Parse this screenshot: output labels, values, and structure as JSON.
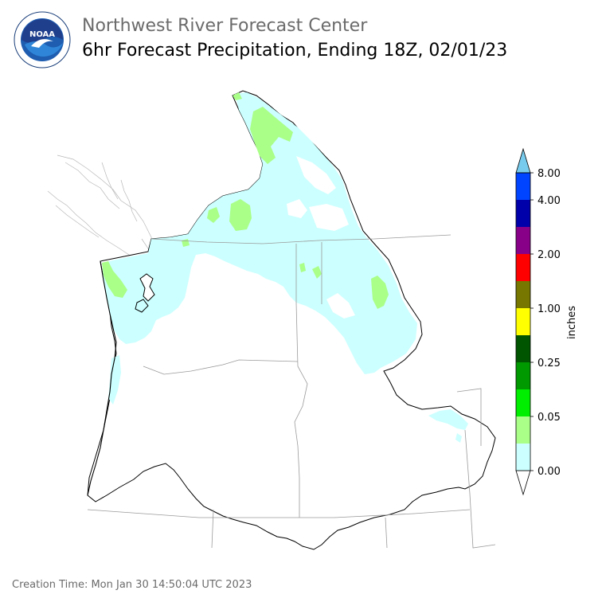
{
  "header": {
    "title": "Northwest River Forecast Center",
    "subtitle": "6hr Forecast Precipitation, Ending 18Z, 02/01/23"
  },
  "logo": {
    "text": "NOAA",
    "ring_text": "NATIONAL OCEANIC AND ATMOSPHERIC ADMINISTRATION · U.S. DEPARTMENT OF COMMERCE"
  },
  "legend": {
    "unit_label": "inches",
    "tick_labels": [
      "0.00",
      "0.05",
      "0.25",
      "1.00",
      "2.00",
      "4.00",
      "8.00"
    ],
    "colors": [
      "#ffffff",
      "#ccffff",
      "#aaff88",
      "#00ee00",
      "#009900",
      "#005500",
      "#ffff00",
      "#777700",
      "#ff0000",
      "#880088",
      "#0000aa",
      "#0044ff",
      "#77ccee"
    ]
  },
  "map": {
    "region": "Pacific Northwest / Columbia River Basin",
    "fill_colors": {
      "light": "#ccffff",
      "medium": "#aaff88"
    }
  },
  "footer": {
    "creation_time": "Creation Time: Mon Jan 30 14:50:04 UTC 2023"
  }
}
